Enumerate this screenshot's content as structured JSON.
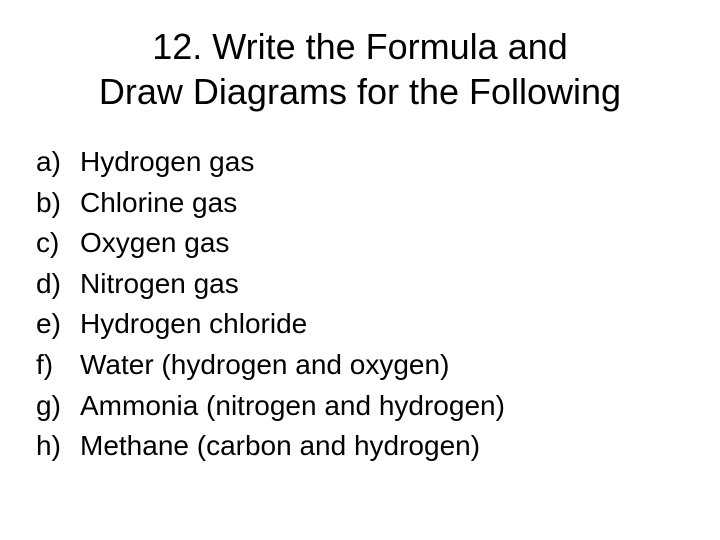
{
  "title_line1": "12. Write the Formula and",
  "title_line2": "Draw Diagrams for the Following",
  "items": {
    "a": {
      "marker": "a)",
      "text": "Hydrogen gas"
    },
    "b": {
      "marker": "b)",
      "text": "Chlorine gas"
    },
    "c": {
      "marker": "c)",
      "text": "Oxygen gas"
    },
    "d": {
      "marker": "d)",
      "text": "Nitrogen gas"
    },
    "e": {
      "marker": "e)",
      "text": "Hydrogen chloride"
    },
    "f": {
      "marker": "f)",
      "text": "Water (hydrogen and oxygen)"
    },
    "g": {
      "marker": "g)",
      "text": "Ammonia (nitrogen and hydrogen)"
    },
    "h": {
      "marker": "h)",
      "text": "Methane (carbon and hydrogen)"
    }
  }
}
